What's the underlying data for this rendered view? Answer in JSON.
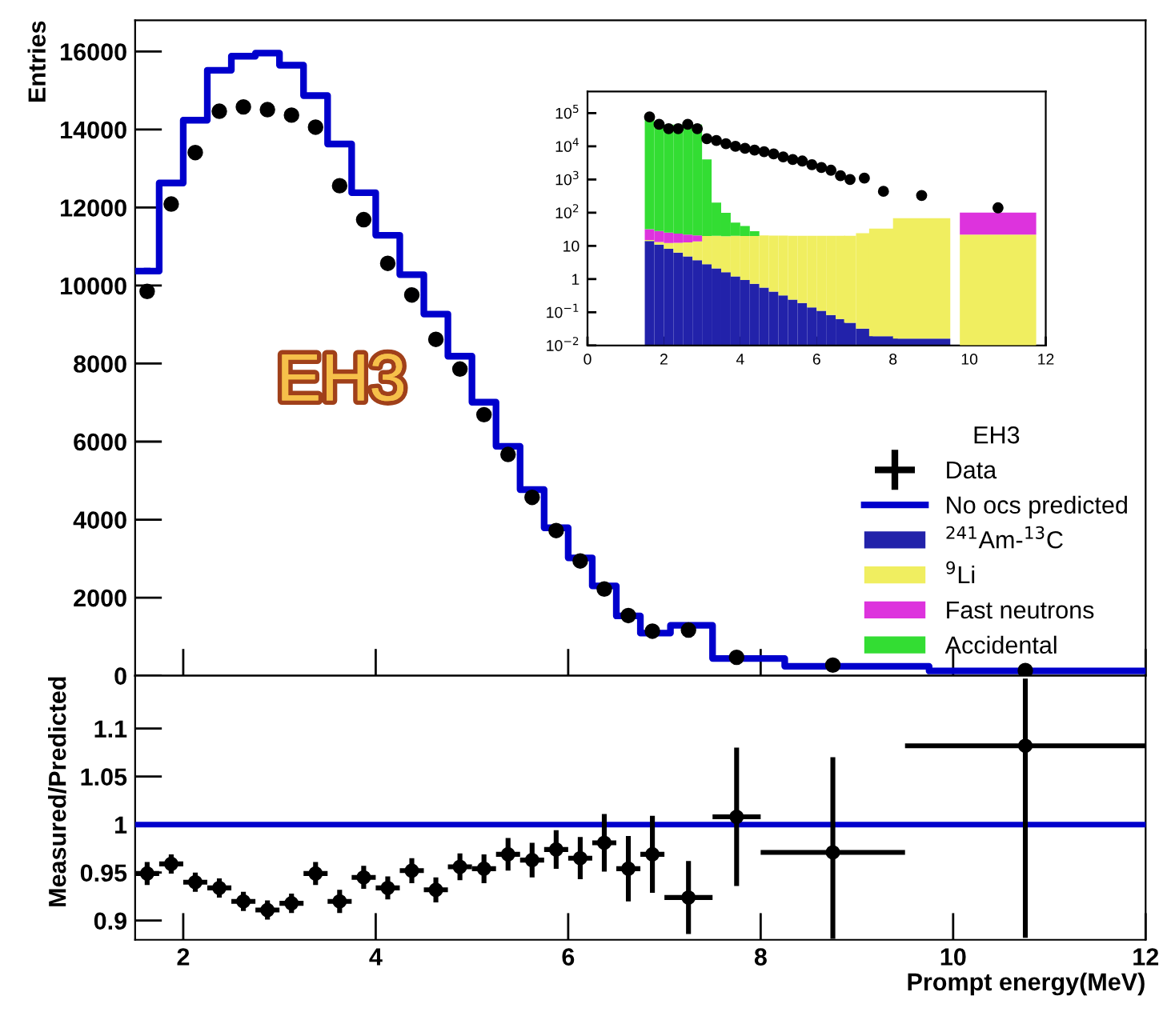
{
  "chart_data": [
    {
      "type": "line",
      "ylabel": "Entries",
      "legend_title": "EH3",
      "legend": "bottom right",
      "annotations": [
        "EH3"
      ],
      "x": [
        1.625,
        1.875,
        2.125,
        2.375,
        2.625,
        2.875,
        3.125,
        3.375,
        3.625,
        3.875,
        4.125,
        4.375,
        4.625,
        4.875,
        5.125,
        5.375,
        5.625,
        5.875,
        6.125,
        6.375,
        6.625,
        6.875,
        7.25,
        7.75,
        8.75,
        10.75
      ],
      "xlim": [
        1.5,
        12
      ],
      "xticks": [
        2,
        4,
        6,
        8,
        10,
        12
      ],
      "ylim": [
        0,
        16800
      ],
      "yticks": [
        0,
        2000,
        4000,
        6000,
        8000,
        10000,
        12000,
        14000,
        16000
      ],
      "tick_labels": "y",
      "series": [
        {
          "name": "Data",
          "type": "scatter",
          "marker": "circle",
          "color": "#000000",
          "values": [
            9850,
            12090,
            13410,
            14470,
            14580,
            14510,
            14370,
            14060,
            12560,
            11690,
            10570,
            9760,
            8620,
            7860,
            6690,
            5670,
            4570,
            3720,
            2940,
            2220,
            1540,
            1140,
            1170,
            470,
            270,
            130
          ]
        },
        {
          "name": "No ocs predicted",
          "type": "step",
          "color": "#0000cc",
          "values": [
            10370,
            12630,
            14240,
            15520,
            15880,
            15960,
            15650,
            14870,
            13630,
            12380,
            11290,
            10280,
            9270,
            8190,
            7010,
            5880,
            4770,
            3790,
            3020,
            2300,
            1530,
            1090,
            1290,
            440,
            240,
            120
          ]
        }
      ]
    },
    {
      "type": "bar",
      "log": "y",
      "stacked": true,
      "legend": "bottom",
      "x": [
        1.625,
        1.875,
        2.125,
        2.375,
        2.625,
        2.875,
        3.125,
        3.375,
        3.625,
        3.875,
        4.125,
        4.375,
        4.625,
        4.875,
        5.125,
        5.375,
        5.625,
        5.875,
        6.125,
        6.375,
        6.625,
        6.875,
        7.25,
        7.75,
        8.75,
        10.75
      ],
      "xlim": [
        0,
        12
      ],
      "xticks": [
        0,
        2,
        4,
        6,
        8,
        10,
        12
      ],
      "ylim": [
        0.01,
        450000
      ],
      "yticks": [
        {
          "value": 0.01,
          "label": "10$^{−2}$"
        },
        {
          "value": 0.1,
          "label": "10$^{−1}$"
        },
        1,
        10,
        {
          "value": 100,
          "label": "10$^{2}$"
        },
        {
          "value": 1000,
          "label": "10$^{3}$"
        },
        {
          "value": 10000,
          "label": "10$^{4}$"
        },
        {
          "value": 100000,
          "label": "10$^{5}$"
        }
      ],
      "series": [
        {
          "name": "$^{241}$Am-$^{13}$C",
          "color": "#2222aa",
          "values": [
            14,
            11,
            8.2,
            6.3,
            4.8,
            3.7,
            2.8,
            2.1,
            1.6,
            1.2,
            0.94,
            0.72,
            0.55,
            0.42,
            0.32,
            0.24,
            0.19,
            0.14,
            0.11,
            0.083,
            0.063,
            0.048,
            0.032,
            0.019,
            0.016,
            null
          ]
        },
        {
          "name": "$^{9}$Li",
          "color": "#f0ee60",
          "values": [
            1,
            2,
            4,
            6,
            8,
            10,
            17,
            18,
            18,
            19,
            19,
            19,
            20,
            20,
            20,
            20,
            20,
            20,
            20,
            20,
            20,
            20,
            24,
            33,
            68,
            22
          ]
        },
        {
          "name": "Fast neutrons",
          "color": "#dd33dd",
          "values": [
            17,
            15,
            13,
            11,
            9,
            7,
            null,
            null,
            null,
            null,
            null,
            null,
            null,
            null,
            null,
            null,
            null,
            null,
            null,
            null,
            null,
            null,
            null,
            null,
            null,
            78
          ]
        },
        {
          "name": "Accidental",
          "color": "#33dd33",
          "values": [
            90000,
            45000,
            45000,
            45000,
            45000,
            45000,
            4000,
            180,
            80,
            30,
            20,
            8,
            null,
            null,
            null,
            null,
            null,
            null,
            null,
            null,
            null,
            null,
            null,
            null,
            null,
            null
          ]
        },
        {
          "type": "scatter",
          "marker": "circle",
          "color": "#000000",
          "values": [
            77000,
            46000,
            34000,
            34000,
            46000,
            34000,
            17000,
            15000,
            12000,
            10000,
            8700,
            7700,
            6900,
            5900,
            4800,
            4000,
            3600,
            2800,
            2300,
            1900,
            1300,
            1000,
            1100,
            440,
            330,
            140
          ]
        }
      ]
    },
    {
      "type": "scatter",
      "marker": "circle",
      "xlabel": "Prompt energy(MeV)",
      "ylabel": "Measured/Predicted",
      "x": [
        1.625,
        1.875,
        2.125,
        2.375,
        2.625,
        2.875,
        3.125,
        3.375,
        3.625,
        3.875,
        4.125,
        4.375,
        4.625,
        4.875,
        5.125,
        5.375,
        5.625,
        5.875,
        6.125,
        6.375,
        6.625,
        6.875,
        7.25,
        7.75,
        8.75,
        10.75
      ],
      "xlim": [
        1.5,
        12
      ],
      "xticks": [
        2,
        4,
        6,
        8,
        10,
        12
      ],
      "ylim": [
        0.88,
        1.155
      ],
      "yticks": [
        0.9,
        0.95,
        1,
        1.05,
        1.1
      ],
      "ref_lines": [
        {
          "axis": "y",
          "value": 1,
          "color": "#0000cc"
        }
      ],
      "series": [
        {
          "color": "#000000",
          "values": [
            0.949,
            0.959,
            0.94,
            0.934,
            0.92,
            0.911,
            0.918,
            0.949,
            0.92,
            0.945,
            0.934,
            0.952,
            0.932,
            0.956,
            0.954,
            0.969,
            0.963,
            0.974,
            0.965,
            0.981,
            0.954,
            0.969,
            0.924,
            1.008,
            0.971,
            1.082
          ],
          "errors": [
            0.012,
            0.01,
            0.01,
            0.01,
            0.01,
            0.01,
            0.01,
            0.012,
            0.012,
            0.012,
            0.012,
            0.013,
            0.013,
            0.014,
            0.015,
            0.017,
            0.018,
            0.02,
            0.022,
            0.03,
            0.034,
            0.04,
            0.038,
            0.072,
            [
              0.881,
              1.07
            ],
            [
              0.882,
              1.152
            ]
          ],
          "xerrors": [
            0.125,
            0.125,
            0.125,
            0.125,
            0.125,
            0.125,
            0.125,
            0.125,
            0.125,
            0.125,
            0.125,
            0.125,
            0.125,
            0.125,
            0.125,
            0.125,
            0.125,
            0.125,
            0.125,
            0.125,
            0.125,
            0.125,
            0.25,
            0.25,
            0.75,
            1.25
          ]
        }
      ]
    }
  ]
}
